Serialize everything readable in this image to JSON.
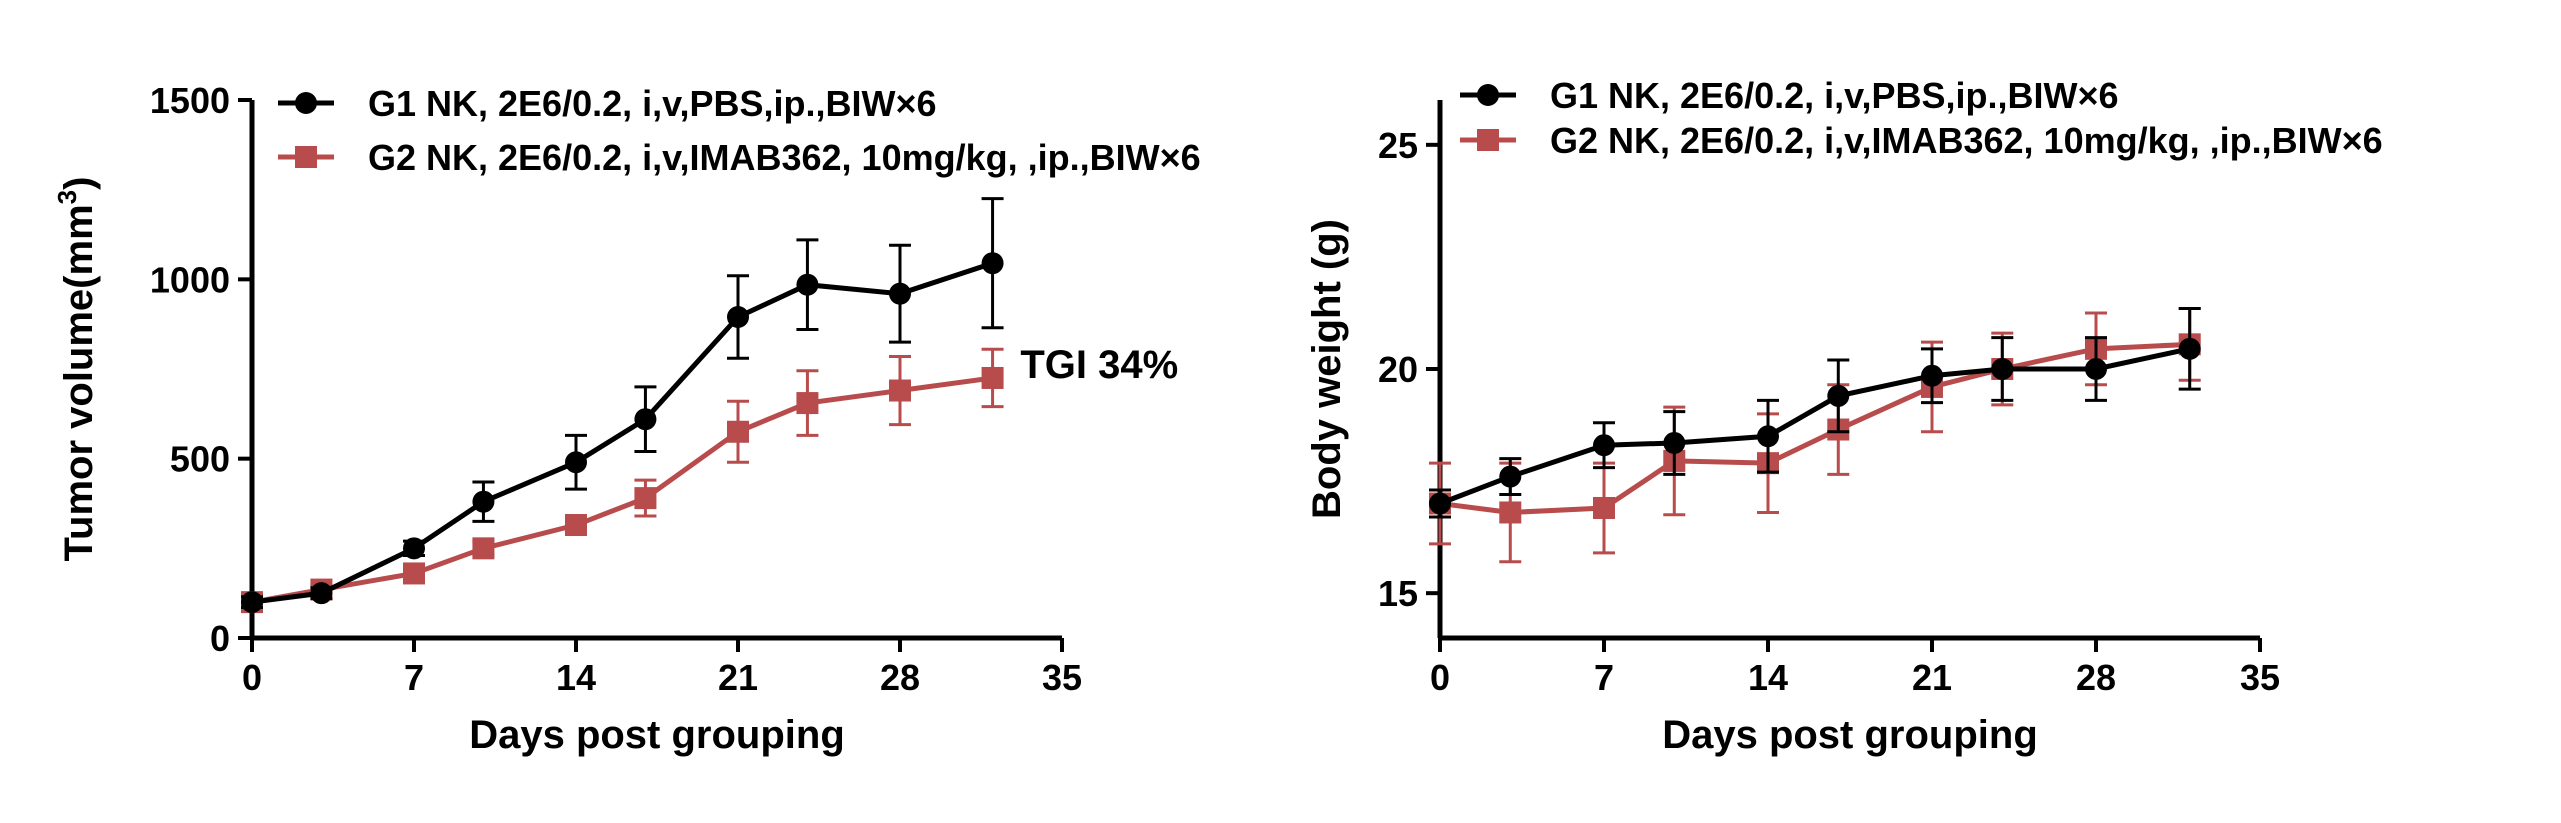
{
  "chart_data": [
    {
      "type": "line",
      "xlabel": "Days post grouping",
      "ylabel": "Tumor volume(mm",
      "ylabel_sup": "3",
      "ylabel_tail": ")",
      "xlim": [
        0,
        35
      ],
      "ylim": [
        0,
        1500
      ],
      "xticks": [
        0,
        7,
        14,
        21,
        28,
        35
      ],
      "yticks": [
        0,
        500,
        1000,
        1500
      ],
      "grid": false,
      "legend": "top-left",
      "annotation": {
        "text": "TGI 34%",
        "x": 33.2,
        "y": 720
      },
      "series": [
        {
          "name": "G1 NK, 2E6/0.2, i,v,PBS,ip.,BIW×6",
          "color": "#000000",
          "marker": "circle",
          "x": [
            0,
            3,
            7,
            10,
            14,
            17,
            21,
            24,
            28,
            32
          ],
          "y": [
            100,
            125,
            250,
            380,
            490,
            610,
            895,
            985,
            960,
            1045
          ],
          "err": [
            15,
            15,
            20,
            55,
            75,
            90,
            115,
            125,
            135,
            180
          ]
        },
        {
          "name": "G2 NK, 2E6/0.2, i,v,IMAB362, 10mg/kg, ,ip.,BIW×6",
          "color": "#b84c4c",
          "marker": "square",
          "x": [
            0,
            3,
            7,
            10,
            14,
            17,
            21,
            24,
            28,
            32
          ],
          "y": [
            100,
            135,
            180,
            250,
            315,
            390,
            575,
            655,
            690,
            725
          ],
          "err": [
            10,
            12,
            15,
            20,
            20,
            50,
            85,
            90,
            95,
            80
          ]
        }
      ]
    },
    {
      "type": "line",
      "xlabel": "Days post grouping",
      "ylabel": "Body weight (g)",
      "xlim": [
        0,
        35
      ],
      "ylim": [
        14,
        26
      ],
      "xticks": [
        0,
        7,
        14,
        21,
        28,
        35
      ],
      "yticks": [
        15,
        20,
        25
      ],
      "grid": false,
      "legend": "top-left",
      "series": [
        {
          "name": "G1 NK, 2E6/0.2, i,v,PBS,ip.,BIW×6",
          "color": "#000000",
          "marker": "circle",
          "x": [
            0,
            3,
            7,
            10,
            14,
            17,
            21,
            24,
            28,
            32
          ],
          "y": [
            17.0,
            17.6,
            18.3,
            18.35,
            18.5,
            19.4,
            19.85,
            20.0,
            20.0,
            20.45
          ],
          "err": [
            0.3,
            0.4,
            0.5,
            0.7,
            0.8,
            0.8,
            0.6,
            0.7,
            0.7,
            0.9
          ]
        },
        {
          "name": "G2 NK, 2E6/0.2, i,v,IMAB362, 10mg/kg, ,ip.,BIW×6",
          "color": "#b84c4c",
          "marker": "square",
          "x": [
            0,
            3,
            7,
            10,
            14,
            17,
            21,
            24,
            28,
            32
          ],
          "y": [
            17.0,
            16.8,
            16.9,
            17.95,
            17.9,
            18.65,
            19.6,
            20.0,
            20.45,
            20.55
          ],
          "err": [
            0.9,
            1.1,
            1.0,
            1.2,
            1.1,
            1.0,
            1.0,
            0.8,
            0.8,
            0.8
          ]
        }
      ]
    }
  ]
}
